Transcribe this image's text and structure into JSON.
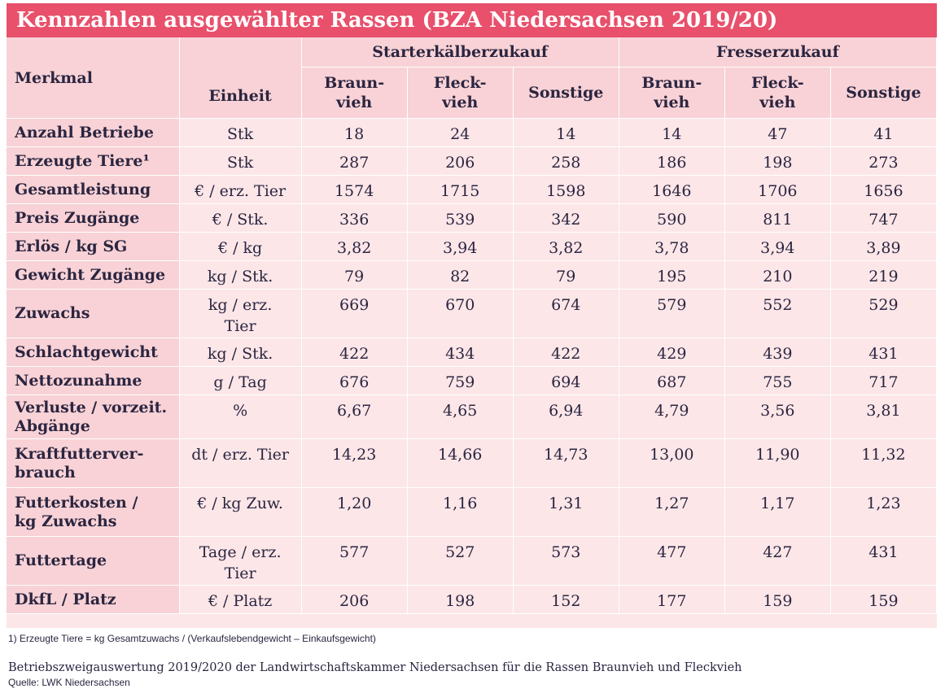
{
  "title": "Kennzahlen ausgewählter Rassen (BZA Niedersachsen 2019/20)",
  "header": {
    "merkmal": "Merkmal",
    "einheit": "Einheit",
    "group1": "Starterkälberzukauf",
    "group2": "Fresserzukauf",
    "g1_col1": "Braun-\nvieh",
    "g1_col2": "Fleck-\nvieh",
    "g1_col3": "Sonstige",
    "g2_col1": "Braun-\nvieh",
    "g2_col2": "Fleck-\nvieh",
    "g2_col3": "Sonstige"
  },
  "rows": [
    {
      "label": "Anzahl Betriebe",
      "unit": "Stk",
      "v": [
        "18",
        "24",
        "14",
        "14",
        "47",
        "41"
      ]
    },
    {
      "label": "Erzeugte Tiere¹",
      "unit": "Stk",
      "v": [
        "287",
        "206",
        "258",
        "186",
        "198",
        "273"
      ]
    },
    {
      "label": "Gesamtleistung",
      "unit": "€ / erz. Tier",
      "v": [
        "1574",
        "1715",
        "1598",
        "1646",
        "1706",
        "1656"
      ]
    },
    {
      "label": "Preis Zugänge",
      "unit": "€ / Stk.",
      "v": [
        "336",
        "539",
        "342",
        "590",
        "811",
        "747"
      ]
    },
    {
      "label": "Erlös / kg SG",
      "unit": "€ / kg",
      "v": [
        "3,82",
        "3,94",
        "3,82",
        "3,78",
        "3,94",
        "3,89"
      ]
    },
    {
      "label": "Gewicht Zugänge",
      "unit": "kg / Stk.",
      "v": [
        "79",
        "82",
        "79",
        "195",
        "210",
        "219"
      ]
    },
    {
      "label": "Zuwachs",
      "unit": "kg / erz.\nTier",
      "v": [
        "669",
        "670",
        "674",
        "579",
        "552",
        "529"
      ]
    },
    {
      "label": "Schlachtgewicht",
      "unit": "kg / Stk.",
      "v": [
        "422",
        "434",
        "422",
        "429",
        "439",
        "431"
      ]
    },
    {
      "label": "Nettozunahme",
      "unit": "g / Tag",
      "v": [
        "676",
        "759",
        "694",
        "687",
        "755",
        "717"
      ]
    },
    {
      "label": "Verluste / vorzeit.\nAbgänge",
      "unit": "%",
      "v": [
        "6,67",
        "4,65",
        "6,94",
        "4,79",
        "3,56",
        "3,81"
      ]
    },
    {
      "label": "Kraftfutterver-\nbrauch",
      "unit": "dt / erz. Tier",
      "v": [
        "14,23",
        "14,66",
        "14,73",
        "13,00",
        "11,90",
        "11,32"
      ]
    },
    {
      "label": "Futterkosten /\nkg Zuwachs",
      "unit": "€ / kg Zuw.",
      "v": [
        "1,20",
        "1,16",
        "1,31",
        "1,27",
        "1,17",
        "1,23"
      ]
    },
    {
      "label": "Futtertage",
      "unit": "Tage / erz.\nTier",
      "v": [
        "577",
        "527",
        "573",
        "477",
        "427",
        "431"
      ]
    },
    {
      "label": "DkfL / Platz",
      "unit": "€ / Platz",
      "v": [
        "206",
        "198",
        "152",
        "177",
        "159",
        "159"
      ]
    }
  ],
  "footnote": "1) Erzeugte Tiere = kg Gesamtzuwachs / (Verkaufslebendgewicht – Einkaufsgewicht)",
  "source_main": "Betriebszweigauswertung 2019/2020 der Landwirtschaftskammer Niedersachsen für die Rassen Braunvieh und Fleckvieh",
  "source_sub": "Quelle: LWK Niedersachsen"
}
